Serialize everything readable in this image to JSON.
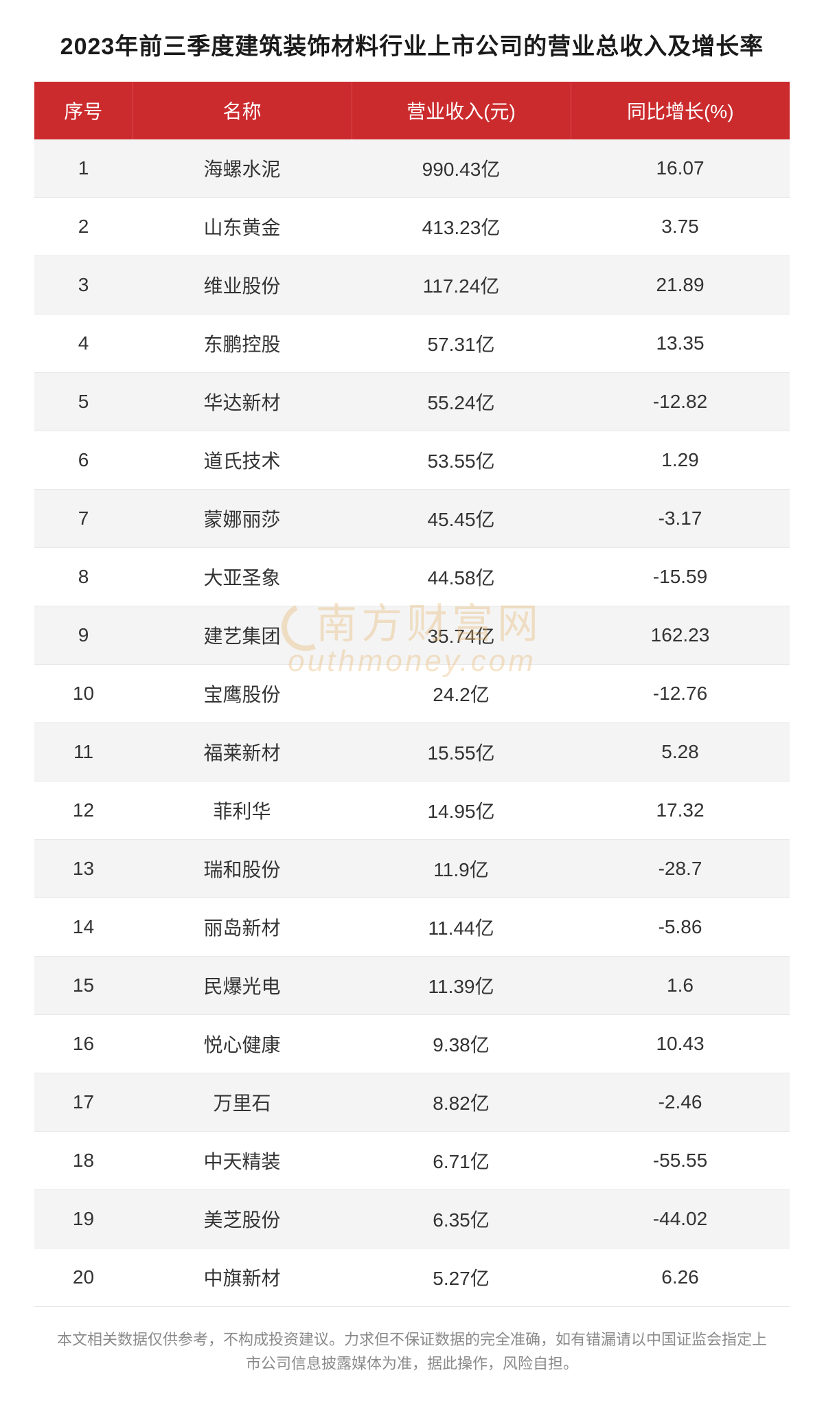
{
  "title": "2023年前三季度建筑装饰材料行业上市公司的营业总收入及增长率",
  "columns": [
    "序号",
    "名称",
    "营业收入(元)",
    "同比增长(%)"
  ],
  "rows": [
    {
      "index": "1",
      "name": "海螺水泥",
      "revenue": "990.43亿",
      "growth": "16.07"
    },
    {
      "index": "2",
      "name": "山东黄金",
      "revenue": "413.23亿",
      "growth": "3.75"
    },
    {
      "index": "3",
      "name": "维业股份",
      "revenue": "117.24亿",
      "growth": "21.89"
    },
    {
      "index": "4",
      "name": "东鹏控股",
      "revenue": "57.31亿",
      "growth": "13.35"
    },
    {
      "index": "5",
      "name": "华达新材",
      "revenue": "55.24亿",
      "growth": "-12.82"
    },
    {
      "index": "6",
      "name": "道氏技术",
      "revenue": "53.55亿",
      "growth": "1.29"
    },
    {
      "index": "7",
      "name": "蒙娜丽莎",
      "revenue": "45.45亿",
      "growth": "-3.17"
    },
    {
      "index": "8",
      "name": "大亚圣象",
      "revenue": "44.58亿",
      "growth": "-15.59"
    },
    {
      "index": "9",
      "name": "建艺集团",
      "revenue": "35.74亿",
      "growth": "162.23"
    },
    {
      "index": "10",
      "name": "宝鹰股份",
      "revenue": "24.2亿",
      "growth": "-12.76"
    },
    {
      "index": "11",
      "name": "福莱新材",
      "revenue": "15.55亿",
      "growth": "5.28"
    },
    {
      "index": "12",
      "name": "菲利华",
      "revenue": "14.95亿",
      "growth": "17.32"
    },
    {
      "index": "13",
      "name": "瑞和股份",
      "revenue": "11.9亿",
      "growth": "-28.7"
    },
    {
      "index": "14",
      "name": "丽岛新材",
      "revenue": "11.44亿",
      "growth": "-5.86"
    },
    {
      "index": "15",
      "name": "民爆光电",
      "revenue": "11.39亿",
      "growth": "1.6"
    },
    {
      "index": "16",
      "name": "悦心健康",
      "revenue": "9.38亿",
      "growth": "10.43"
    },
    {
      "index": "17",
      "name": "万里石",
      "revenue": "8.82亿",
      "growth": "-2.46"
    },
    {
      "index": "18",
      "name": "中天精装",
      "revenue": "6.71亿",
      "growth": "-55.55"
    },
    {
      "index": "19",
      "name": "美芝股份",
      "revenue": "6.35亿",
      "growth": "-44.02"
    },
    {
      "index": "20",
      "name": "中旗新材",
      "revenue": "5.27亿",
      "growth": "6.26"
    }
  ],
  "footer": "本文相关数据仅供参考，不构成投资建议。力求但不保证数据的完全准确，如有错漏请以中国证监会指定上市公司信息披露媒体为准，据此操作，风险自担。",
  "watermark": {
    "cn": "南方财富网",
    "en": "outhmoney.com"
  },
  "style": {
    "header_bg": "#cc2b2e",
    "header_fg": "#ffffff",
    "row_odd_bg": "#f4f4f4",
    "row_even_bg": "#ffffff",
    "text_color": "#333333",
    "title_color": "#1a1a1a",
    "footer_color": "#8a8a8a",
    "border_color": "#e8e8e8",
    "watermark_color": "#e8b56a",
    "title_fontsize": 34,
    "header_fontsize": 28,
    "cell_fontsize": 28,
    "footer_fontsize": 22,
    "col_widths_pct": [
      13,
      29,
      29,
      29
    ]
  }
}
